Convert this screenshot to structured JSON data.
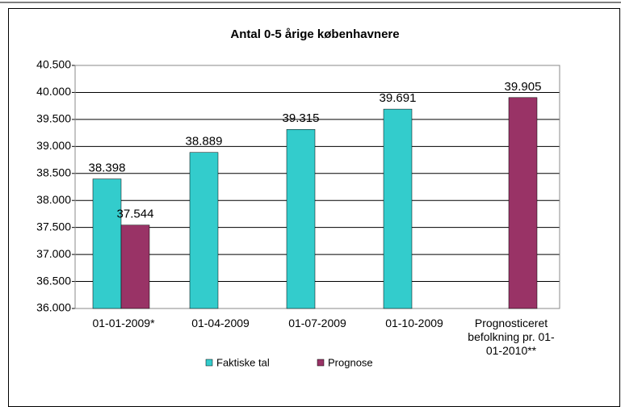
{
  "chart_data": {
    "type": "bar",
    "title": "Antal 0-5 årige københavnere",
    "categories": [
      "01-01-2009*",
      "01-04-2009",
      "01-07-2009",
      "01-10-2009",
      "Prognosticeret befolkning pr. 01-01-2010**"
    ],
    "series": [
      {
        "name": "Faktiske tal",
        "color": "#33cccc",
        "values": [
          38398,
          38889,
          39315,
          39691,
          null
        ],
        "value_labels": [
          "38.398",
          "38.889",
          "39.315",
          "39.691",
          null
        ]
      },
      {
        "name": "Prognose",
        "color": "#993366",
        "values": [
          37544,
          null,
          null,
          null,
          39905
        ],
        "value_labels": [
          "37.544",
          null,
          null,
          null,
          "39.905"
        ]
      }
    ],
    "ylim": [
      36000,
      40500
    ],
    "yticks": [
      {
        "value": 36000,
        "label": "36.000"
      },
      {
        "value": 36500,
        "label": "36.500"
      },
      {
        "value": 37000,
        "label": "37.000"
      },
      {
        "value": 37500,
        "label": "37.500"
      },
      {
        "value": 38000,
        "label": "38.000"
      },
      {
        "value": 38500,
        "label": "38.500"
      },
      {
        "value": 39000,
        "label": "39.000"
      },
      {
        "value": 39500,
        "label": "39.500"
      },
      {
        "value": 40000,
        "label": "40.000"
      },
      {
        "value": 40500,
        "label": "40.500"
      }
    ],
    "grid": true,
    "legend": "bottom"
  }
}
